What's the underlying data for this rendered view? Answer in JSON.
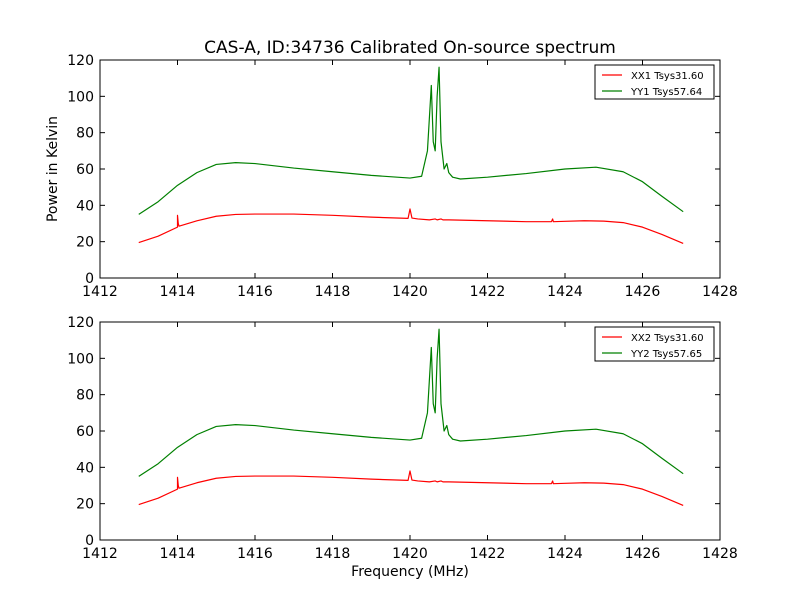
{
  "figure": {
    "title": "CAS-A, ID:34736 Calibrated On-source spectrum",
    "xlabel": "Frequency (MHz)",
    "ylabel": "Power in Kelvin"
  },
  "colors": {
    "xx": "#ff0000",
    "yy": "#008000"
  },
  "chart_data": [
    {
      "type": "line",
      "xlim": [
        1412,
        1428
      ],
      "ylim": [
        0,
        120
      ],
      "xticks": [
        1412,
        1414,
        1416,
        1418,
        1420,
        1422,
        1424,
        1426,
        1428
      ],
      "yticks": [
        0,
        20,
        40,
        60,
        80,
        100,
        120
      ],
      "grid": false,
      "legend_position": "top-right",
      "series": [
        {
          "name": "XX1 Tsys31.60",
          "color": "#ff0000",
          "x": [
            1413.0,
            1413.5,
            1414.0,
            1414.0,
            1414.02,
            1414.04,
            1414.5,
            1415.0,
            1415.5,
            1416.0,
            1417.0,
            1418.0,
            1419.0,
            1419.95,
            1420.0,
            1420.05,
            1420.2,
            1420.5,
            1420.65,
            1420.7,
            1420.8,
            1420.85,
            1421.0,
            1422.0,
            1423.0,
            1423.65,
            1423.68,
            1423.7,
            1424.0,
            1424.5,
            1425.0,
            1425.5,
            1426.0,
            1426.5,
            1427.05
          ],
          "y": [
            19.5,
            23.0,
            28.0,
            34.5,
            30.0,
            28.5,
            31.5,
            34.0,
            35.0,
            35.2,
            35.2,
            34.5,
            33.5,
            32.8,
            38.0,
            33.0,
            32.5,
            32.0,
            32.5,
            32.0,
            32.5,
            32.0,
            32.0,
            31.5,
            31.0,
            31.0,
            32.5,
            31.0,
            31.2,
            31.5,
            31.3,
            30.5,
            28.0,
            24.0,
            19.0
          ]
        },
        {
          "name": "YY1 Tsys57.64",
          "color": "#008000",
          "x": [
            1413.0,
            1413.5,
            1414.0,
            1414.5,
            1415.0,
            1415.5,
            1416.0,
            1417.0,
            1418.0,
            1419.0,
            1420.0,
            1420.3,
            1420.45,
            1420.55,
            1420.6,
            1420.65,
            1420.7,
            1420.75,
            1420.8,
            1420.88,
            1420.95,
            1421.0,
            1421.1,
            1421.3,
            1422.0,
            1423.0,
            1424.0,
            1424.8,
            1425.5,
            1426.0,
            1426.5,
            1427.05
          ],
          "y": [
            35.0,
            42.0,
            51.0,
            58.0,
            62.5,
            63.5,
            63.0,
            60.5,
            58.5,
            56.5,
            55.0,
            56.0,
            70.0,
            106.0,
            75.0,
            70.0,
            100.0,
            116.0,
            75.0,
            60.0,
            63.0,
            58.0,
            55.5,
            54.5,
            55.5,
            57.5,
            60.0,
            61.0,
            58.5,
            53.0,
            45.0,
            36.5
          ]
        }
      ]
    },
    {
      "type": "line",
      "xlim": [
        1412,
        1428
      ],
      "ylim": [
        0,
        120
      ],
      "xticks": [
        1412,
        1414,
        1416,
        1418,
        1420,
        1422,
        1424,
        1426,
        1428
      ],
      "yticks": [
        0,
        20,
        40,
        60,
        80,
        100,
        120
      ],
      "grid": false,
      "legend_position": "top-right",
      "series": [
        {
          "name": "XX2 Tsys31.60",
          "color": "#ff0000",
          "x": [
            1413.0,
            1413.5,
            1414.0,
            1414.0,
            1414.02,
            1414.04,
            1414.5,
            1415.0,
            1415.5,
            1416.0,
            1417.0,
            1418.0,
            1419.0,
            1419.95,
            1420.0,
            1420.05,
            1420.2,
            1420.5,
            1420.65,
            1420.7,
            1420.8,
            1420.85,
            1421.0,
            1422.0,
            1423.0,
            1423.65,
            1423.68,
            1423.7,
            1424.0,
            1424.5,
            1425.0,
            1425.5,
            1426.0,
            1426.5,
            1427.05
          ],
          "y": [
            19.5,
            23.0,
            28.0,
            34.5,
            30.0,
            28.5,
            31.5,
            34.0,
            35.0,
            35.2,
            35.2,
            34.5,
            33.5,
            32.8,
            38.0,
            33.0,
            32.5,
            32.0,
            32.5,
            32.0,
            32.5,
            32.0,
            32.0,
            31.5,
            31.0,
            31.0,
            32.5,
            31.0,
            31.2,
            31.5,
            31.3,
            30.5,
            28.0,
            24.0,
            19.0
          ]
        },
        {
          "name": "YY2 Tsys57.65",
          "color": "#008000",
          "x": [
            1413.0,
            1413.5,
            1414.0,
            1414.5,
            1415.0,
            1415.5,
            1416.0,
            1417.0,
            1418.0,
            1419.0,
            1420.0,
            1420.3,
            1420.45,
            1420.55,
            1420.6,
            1420.65,
            1420.7,
            1420.75,
            1420.8,
            1420.88,
            1420.95,
            1421.0,
            1421.1,
            1421.3,
            1422.0,
            1423.0,
            1424.0,
            1424.8,
            1425.5,
            1426.0,
            1426.5,
            1427.05
          ],
          "y": [
            35.0,
            42.0,
            51.0,
            58.0,
            62.5,
            63.5,
            63.0,
            60.5,
            58.5,
            56.5,
            55.0,
            56.0,
            70.0,
            106.0,
            75.0,
            70.0,
            100.0,
            116.0,
            75.0,
            60.0,
            63.0,
            58.0,
            55.5,
            54.5,
            55.5,
            57.5,
            60.0,
            61.0,
            58.5,
            53.0,
            45.0,
            36.5
          ]
        }
      ]
    }
  ]
}
